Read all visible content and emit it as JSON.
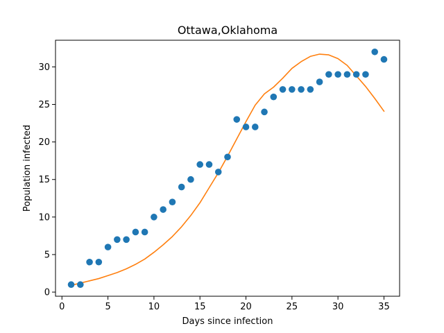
{
  "chart_data": {
    "type": "scatter",
    "title": "Ottawa,Oklahoma",
    "xlabel": "Days since infection",
    "ylabel": "Population infected",
    "xlim": [
      -0.7,
      36.7
    ],
    "ylim": [
      -0.55,
      33.55
    ],
    "xticks": [
      0,
      5,
      10,
      15,
      20,
      25,
      30,
      35
    ],
    "yticks": [
      0,
      5,
      10,
      15,
      20,
      25,
      30
    ],
    "grid": false,
    "series": [
      {
        "kind": "scatter",
        "color": "#1f77b4",
        "x": [
          1,
          2,
          3,
          4,
          5,
          6,
          7,
          8,
          9,
          10,
          11,
          12,
          13,
          14,
          15,
          16,
          17,
          18,
          19,
          20,
          21,
          22,
          23,
          24,
          25,
          26,
          27,
          28,
          29,
          30,
          31,
          32,
          33,
          34,
          35
        ],
        "y": [
          1,
          1,
          4,
          4,
          6,
          7,
          7,
          8,
          8,
          10,
          11,
          12,
          14,
          15,
          17,
          17,
          16,
          18,
          23,
          22,
          22,
          24,
          26,
          27,
          27,
          27,
          27,
          28,
          29,
          29,
          29,
          29,
          29,
          32,
          31
        ]
      },
      {
        "kind": "line",
        "color": "#ff7f0e",
        "x": [
          1,
          2,
          3,
          4,
          5,
          6,
          7,
          8,
          9,
          10,
          11,
          12,
          13,
          14,
          15,
          16,
          17,
          18,
          19,
          20,
          21,
          22,
          23,
          24,
          25,
          26,
          27,
          28,
          29,
          30,
          31,
          32,
          33,
          34,
          35
        ],
        "y": [
          0.9,
          1.2,
          1.5,
          1.8,
          2.2,
          2.6,
          3.1,
          3.7,
          4.4,
          5.3,
          6.3,
          7.4,
          8.7,
          10.2,
          11.9,
          13.9,
          15.9,
          18.1,
          20.4,
          22.7,
          24.9,
          26.4,
          27.3,
          28.5,
          29.8,
          30.7,
          31.4,
          31.7,
          31.6,
          31.1,
          30.2,
          28.8,
          27.4,
          25.8,
          24.1
        ]
      }
    ]
  }
}
